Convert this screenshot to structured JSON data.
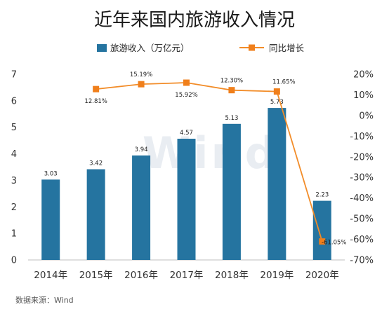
{
  "chart_data": {
    "type": "bar+line",
    "title": "近年来国内旅游收入情况",
    "categories": [
      "2014年",
      "2015年",
      "2016年",
      "2017年",
      "2018年",
      "2019年",
      "2020年"
    ],
    "series": [
      {
        "name": "旅游收入（万亿元）",
        "kind": "bar",
        "axis": "left",
        "values": [
          3.03,
          3.42,
          3.94,
          4.57,
          5.13,
          5.73,
          2.23
        ],
        "labels": [
          "3.03",
          "3.42",
          "3.94",
          "4.57",
          "5.13",
          "5.73",
          "2.23"
        ]
      },
      {
        "name": "同比增长",
        "kind": "line",
        "axis": "right",
        "values": [
          null,
          12.81,
          15.19,
          15.92,
          12.3,
          11.65,
          -61.05
        ],
        "labels": [
          "",
          "12.81%",
          "15.19%",
          "15.92%",
          "12.30%",
          "11.65%",
          "-61.05%"
        ]
      }
    ],
    "y_left": {
      "min": 0,
      "max": 7,
      "ticks": [
        "0",
        "1",
        "2",
        "3",
        "4",
        "5",
        "6",
        "7"
      ]
    },
    "y_right": {
      "min": -70,
      "max": 20,
      "ticks": [
        "20%",
        "10%",
        "0%",
        "-10%",
        "-20%",
        "-30%",
        "-40%",
        "-50%",
        "-60%",
        "-70%"
      ]
    },
    "grid": false,
    "legend_position": "top",
    "colors": {
      "bar": "#2574a0",
      "line": "#f28c28",
      "line_marker": "#f07f1b"
    },
    "source": "数据来源：Wind",
    "watermark": "Wind"
  }
}
